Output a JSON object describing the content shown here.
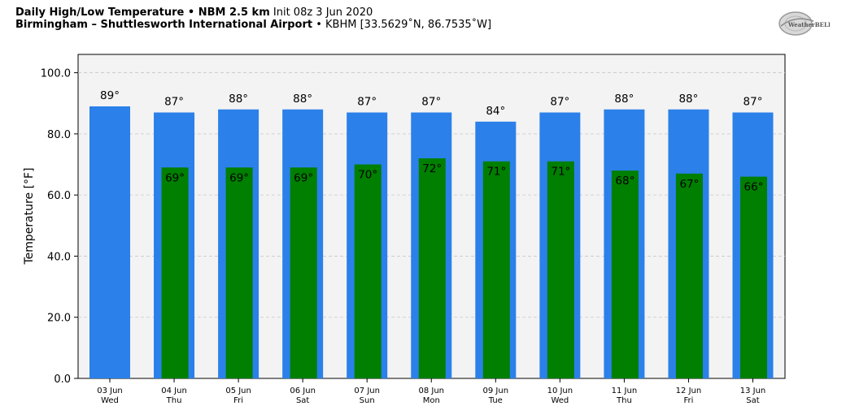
{
  "header": {
    "title_bold": "Daily High/Low Temperature • NBM 2.5 km",
    "title_init": "Init 08z 3 Jun 2020",
    "location_bold": "Birmingham – Shuttlesworth International Airport",
    "location_rest": "• KBHM [33.5629˚N, 86.7535˚W]"
  },
  "logo": {
    "text": "WeatherBELL"
  },
  "chart_data": {
    "type": "bar",
    "title": "Daily High/Low Temperature • NBM 2.5 km",
    "xlabel": "",
    "ylabel": "Temperature [°F]",
    "ylim": [
      0,
      106
    ],
    "yticks": [
      0,
      20,
      40,
      60,
      80,
      100
    ],
    "ytick_labels": [
      "0.0",
      "20.0",
      "40.0",
      "60.0",
      "80.0",
      "100.0"
    ],
    "grid": true,
    "categories": [
      "03 Jun",
      "04 Jun",
      "05 Jun",
      "06 Jun",
      "07 Jun",
      "08 Jun",
      "09 Jun",
      "10 Jun",
      "11 Jun",
      "12 Jun",
      "13 Jun"
    ],
    "weekdays": [
      "Wed",
      "Thu",
      "Fri",
      "Sat",
      "Sun",
      "Mon",
      "Tue",
      "Wed",
      "Thu",
      "Fri",
      "Sat"
    ],
    "series": [
      {
        "values": [
          89,
          87,
          88,
          88,
          87,
          87,
          84,
          87,
          88,
          88,
          87
        ],
        "color": "#2b80ea",
        "labels": [
          "89°",
          "87°",
          "88°",
          "88°",
          "87°",
          "87°",
          "84°",
          "87°",
          "88°",
          "88°",
          "87°"
        ]
      },
      {
        "values": [
          null,
          69,
          69,
          69,
          70,
          72,
          71,
          71,
          68,
          67,
          66
        ],
        "color": "#007f00",
        "labels": [
          "",
          "69°",
          "69°",
          "69°",
          "70°",
          "72°",
          "71°",
          "71°",
          "68°",
          "67°",
          "66°"
        ]
      }
    ]
  }
}
